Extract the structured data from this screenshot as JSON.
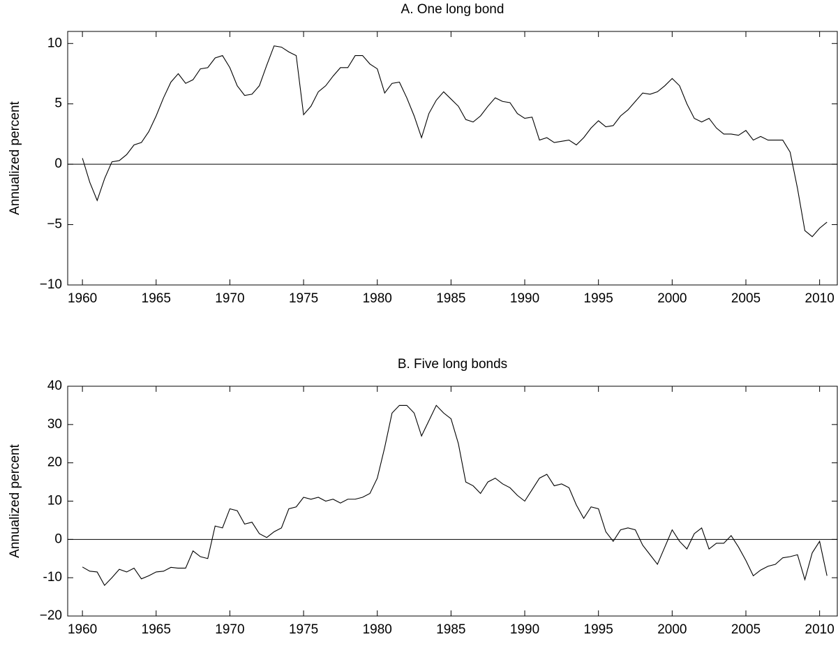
{
  "chart_data": [
    {
      "type": "line",
      "title": "A.  One long bond",
      "ylabel": "Annualized percent",
      "x": [
        1960,
        1960.5,
        1961,
        1961.5,
        1962,
        1962.5,
        1963,
        1963.5,
        1964,
        1964.5,
        1965,
        1965.5,
        1966,
        1966.5,
        1967,
        1967.5,
        1968,
        1968.5,
        1969,
        1969.5,
        1970,
        1970.5,
        1971,
        1971.5,
        1972,
        1972.5,
        1973,
        1973.5,
        1974,
        1974.5,
        1975,
        1975.5,
        1976,
        1976.5,
        1977,
        1977.5,
        1978,
        1978.5,
        1979,
        1979.5,
        1980,
        1980.5,
        1981,
        1981.5,
        1982,
        1982.5,
        1983,
        1983.5,
        1984,
        1984.5,
        1985,
        1985.5,
        1986,
        1986.5,
        1987,
        1987.5,
        1988,
        1988.5,
        1989,
        1989.5,
        1990,
        1990.5,
        1991,
        1991.5,
        1992,
        1992.5,
        1993,
        1993.5,
        1994,
        1994.5,
        1995,
        1995.5,
        1996,
        1996.5,
        1997,
        1997.5,
        1998,
        1998.5,
        1999,
        1999.5,
        2000,
        2000.5,
        2001,
        2001.5,
        2002,
        2002.5,
        2003,
        2003.5,
        2004,
        2004.5,
        2005,
        2005.5,
        2006,
        2006.5,
        2007,
        2007.5,
        2008,
        2008.5,
        2009,
        2009.5,
        2010,
        2010.5
      ],
      "series": [
        {
          "color": "#000000",
          "values": [
            0.5,
            -1.5,
            -3.0,
            -1.2,
            0.2,
            0.3,
            0.8,
            1.6,
            1.8,
            2.7,
            4.0,
            5.5,
            6.8,
            7.5,
            6.7,
            7.0,
            7.9,
            8.0,
            8.8,
            9.0,
            8.0,
            6.5,
            5.7,
            5.8,
            6.5,
            8.2,
            9.8,
            9.7,
            9.3,
            9.0,
            4.1,
            4.8,
            6.0,
            6.5,
            7.3,
            8.0,
            8.0,
            9.0,
            9.0,
            8.3,
            7.9,
            5.9,
            6.7,
            6.8,
            5.5,
            4.0,
            2.2,
            4.2,
            5.3,
            6.0,
            5.4,
            4.8,
            3.7,
            3.5,
            4.0,
            4.8,
            5.5,
            5.2,
            5.1,
            4.2,
            3.8,
            3.9,
            2.0,
            2.2,
            1.8,
            1.9,
            2.0,
            1.6,
            2.2,
            3.0,
            3.6,
            3.1,
            3.2,
            4.0,
            4.5,
            5.2,
            5.9,
            5.8,
            6.0,
            6.5,
            7.1,
            6.5,
            5.0,
            3.8,
            3.5,
            3.8,
            3.0,
            2.5,
            2.5,
            2.4,
            2.8,
            2.0,
            2.3,
            2.0,
            2.0,
            2.0,
            1.0,
            -2.0,
            -5.5,
            -6.0,
            -5.3,
            -4.8
          ]
        }
      ],
      "hline": 0,
      "xlim": [
        1959,
        2011.2
      ],
      "xticks": [
        1960,
        1965,
        1970,
        1975,
        1980,
        1985,
        1990,
        1995,
        2000,
        2005,
        2010
      ],
      "ylim": [
        -10,
        11
      ],
      "yticks": [
        {
          "value": -10,
          "label": "−10"
        },
        {
          "value": -5,
          "label": "−5"
        },
        0,
        5,
        10
      ]
    },
    {
      "type": "line",
      "title": "B.  Five long bonds",
      "ylabel": "Annualized percent",
      "x": [
        1960,
        1960.5,
        1961,
        1961.5,
        1962,
        1962.5,
        1963,
        1963.5,
        1964,
        1964.5,
        1965,
        1965.5,
        1966,
        1966.5,
        1967,
        1967.5,
        1968,
        1968.5,
        1969,
        1969.5,
        1970,
        1970.5,
        1971,
        1971.5,
        1972,
        1972.5,
        1973,
        1973.5,
        1974,
        1974.5,
        1975,
        1975.5,
        1976,
        1976.5,
        1977,
        1977.5,
        1978,
        1978.5,
        1979,
        1979.5,
        1980,
        1980.5,
        1981,
        1981.5,
        1982,
        1982.5,
        1983,
        1983.5,
        1984,
        1984.5,
        1985,
        1985.5,
        1986,
        1986.5,
        1987,
        1987.5,
        1988,
        1988.5,
        1989,
        1989.5,
        1990,
        1990.5,
        1991,
        1991.5,
        1992,
        1992.5,
        1993,
        1993.5,
        1994,
        1994.5,
        1995,
        1995.5,
        1996,
        1996.5,
        1997,
        1997.5,
        1998,
        1998.5,
        1999,
        1999.5,
        2000,
        2000.5,
        2001,
        2001.5,
        2002,
        2002.5,
        2003,
        2003.5,
        2004,
        2004.5,
        2005,
        2005.5,
        2006,
        2006.5,
        2007,
        2007.5,
        2008,
        2008.5,
        2009,
        2009.5,
        2010,
        2010.5
      ],
      "series": [
        {
          "color": "#000000",
          "values": [
            -7.2,
            -8.3,
            -8.5,
            -12.0,
            -10.0,
            -7.8,
            -8.5,
            -7.5,
            -10.3,
            -9.5,
            -8.5,
            -8.3,
            -7.3,
            -7.5,
            -7.5,
            -3.0,
            -4.5,
            -5.0,
            3.5,
            3.0,
            8.0,
            7.5,
            4.0,
            4.5,
            1.5,
            0.5,
            2.0,
            3.0,
            8.0,
            8.5,
            11.0,
            10.5,
            11.0,
            10.0,
            10.5,
            9.5,
            10.5,
            10.5,
            11.0,
            12.0,
            16.0,
            24.0,
            33.0,
            35.0,
            35.0,
            33.0,
            27.0,
            31.0,
            35.0,
            33.0,
            31.5,
            25.0,
            15.0,
            14.0,
            12.0,
            15.0,
            16.0,
            14.5,
            13.5,
            11.5,
            10.0,
            13.0,
            16.0,
            17.0,
            14.0,
            14.5,
            13.5,
            9.0,
            5.5,
            8.5,
            8.0,
            2.0,
            -0.5,
            2.5,
            3.0,
            2.5,
            -1.5,
            -4.0,
            -6.5,
            -2.0,
            2.5,
            -0.5,
            -2.5,
            1.5,
            3.0,
            -2.5,
            -1.0,
            -1.0,
            1.0,
            -2.0,
            -5.5,
            -9.5,
            -8.0,
            -7.0,
            -6.5,
            -4.8,
            -4.5,
            -4.0,
            -10.5,
            -3.5,
            -0.5,
            -9.5
          ]
        }
      ],
      "hline": 0,
      "xlim": [
        1959,
        2011.2
      ],
      "xticks": [
        1960,
        1965,
        1970,
        1975,
        1980,
        1985,
        1990,
        1995,
        2000,
        2005,
        2010
      ],
      "ylim": [
        -20,
        40
      ],
      "yticks": [
        {
          "value": -20,
          "label": "−20"
        },
        -10,
        0,
        10,
        20,
        30,
        40
      ]
    }
  ]
}
